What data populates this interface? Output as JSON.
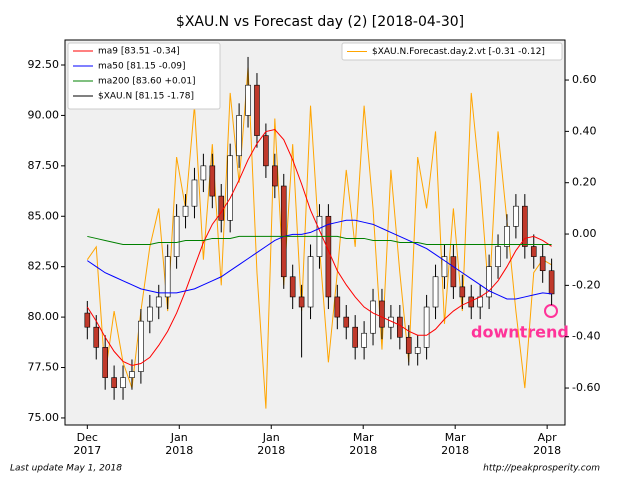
{
  "chart_data": {
    "type": "candlestick",
    "title": "$XAU.N vs Forecast day (2)  [2018-04-30]",
    "footer_left": "Last update May  1, 2018",
    "footer_right": "http://peakprosperity.com",
    "annotation": "downtrend",
    "up_color": "#ffffff",
    "down_color": "#c0392b",
    "candle_edge": "#000000",
    "xlim": [
      -2.5,
      53.5
    ],
    "xticks": [
      {
        "value": 0,
        "label": "Dec"
      },
      {
        "value": 10.3,
        "label": "Jan"
      },
      {
        "value": 20.6,
        "label": "Jan"
      },
      {
        "value": 30.9,
        "label": "Mar"
      },
      {
        "value": 41.2,
        "label": "Mar"
      },
      {
        "value": 51.5,
        "label": "Apr"
      }
    ],
    "xtick_sublabels": [
      "2017",
      "2018",
      "2018",
      "2018",
      "2018",
      "2018"
    ],
    "ylim": [
      74.65,
      93.74
    ],
    "yticks": [
      {
        "value": 75,
        "label": "75.00"
      },
      {
        "value": 77.5,
        "label": "77.50"
      },
      {
        "value": 80,
        "label": "80.00"
      },
      {
        "value": 82.5,
        "label": "82.50"
      },
      {
        "value": 85,
        "label": "85.00"
      },
      {
        "value": 87.5,
        "label": "87.50"
      },
      {
        "value": 90,
        "label": "90.00"
      },
      {
        "value": 92.5,
        "label": "92.50"
      }
    ],
    "y2lim": [
      -0.744,
      0.756
    ],
    "y2ticks": [
      {
        "value": -0.6,
        "label": "-0.60"
      },
      {
        "value": -0.4,
        "label": "-0.40"
      },
      {
        "value": -0.2,
        "label": "-0.20"
      },
      {
        "value": 0,
        "label": "0.00"
      },
      {
        "value": 0.2,
        "label": "0.20"
      },
      {
        "value": 0.4,
        "label": "0.40"
      },
      {
        "value": 0.6,
        "label": "0.60"
      }
    ],
    "candles": [
      [
        80.2,
        80.8,
        78.9,
        79.5
      ],
      [
        79.5,
        80.1,
        77.9,
        78.5
      ],
      [
        78.5,
        79.1,
        76.4,
        77
      ],
      [
        77,
        77.6,
        75.9,
        76.5
      ],
      [
        76.5,
        77.6,
        75.9,
        77
      ],
      [
        77,
        77.9,
        76.4,
        77.3
      ],
      [
        77.3,
        80.4,
        76.7,
        79.8
      ],
      [
        79.8,
        81.1,
        79.2,
        80.5
      ],
      [
        80.5,
        81.6,
        79.9,
        81
      ],
      [
        81,
        83.6,
        80.4,
        83
      ],
      [
        83,
        85.6,
        82.4,
        85
      ],
      [
        85,
        86.1,
        84.4,
        85.5
      ],
      [
        85.5,
        87.4,
        84.9,
        86.8
      ],
      [
        86.8,
        88.1,
        86.2,
        87.5
      ],
      [
        87.5,
        88.1,
        85.4,
        86
      ],
      [
        86,
        86.6,
        84.2,
        84.8
      ],
      [
        84.8,
        88.6,
        84.2,
        88
      ],
      [
        88,
        90.6,
        87.4,
        90
      ],
      [
        90,
        92.9,
        89.4,
        91.5
      ],
      [
        91.5,
        92.1,
        88.4,
        89
      ],
      [
        89,
        89.6,
        86.9,
        87.5
      ],
      [
        87.5,
        88.1,
        85.9,
        86.5
      ],
      [
        86.5,
        87.1,
        81.4,
        82
      ],
      [
        82,
        82.6,
        80.4,
        81
      ],
      [
        81,
        81.6,
        78,
        80.5
      ],
      [
        80.5,
        83.6,
        79.9,
        83
      ],
      [
        83,
        85.6,
        82.4,
        85
      ],
      [
        85,
        85.6,
        80.4,
        81
      ],
      [
        81,
        81.6,
        79.4,
        80
      ],
      [
        80,
        80.6,
        78.9,
        79.5
      ],
      [
        79.5,
        80.1,
        77.9,
        78.5
      ],
      [
        78.5,
        79.8,
        77.9,
        79.2
      ],
      [
        79.2,
        81.4,
        78.6,
        80.8
      ],
      [
        80.8,
        81.4,
        78.9,
        79.5
      ],
      [
        79.5,
        80.6,
        78.9,
        80
      ],
      [
        80,
        80.6,
        78.4,
        79
      ],
      [
        79,
        79.6,
        77.6,
        78.2
      ],
      [
        78.2,
        79.1,
        77.6,
        78.5
      ],
      [
        78.5,
        81.1,
        77.9,
        80.5
      ],
      [
        80.5,
        82.6,
        79.9,
        82
      ],
      [
        82,
        83.6,
        81.4,
        83
      ],
      [
        83,
        83.6,
        80.9,
        81.5
      ],
      [
        81.5,
        82.1,
        80.4,
        81
      ],
      [
        81,
        81.6,
        79.9,
        80.5
      ],
      [
        80.5,
        81.6,
        79.9,
        81
      ],
      [
        81,
        83.1,
        80.4,
        82.5
      ],
      [
        82.5,
        84.1,
        81.9,
        83.5
      ],
      [
        83.5,
        85.1,
        82.9,
        84.5
      ],
      [
        84.5,
        86.1,
        83.9,
        85.5
      ],
      [
        85.5,
        86.1,
        82.9,
        83.5
      ],
      [
        83.5,
        84.1,
        82.4,
        83
      ],
      [
        83,
        83.6,
        81.7,
        82.3
      ],
      [
        82.3,
        82.9,
        80.6,
        81.15
      ]
    ],
    "series": [
      {
        "name": "ma9 [83.51 -0.34]",
        "color": "#ff0000",
        "values": [
          80.5,
          79.8,
          79,
          78.3,
          77.8,
          77.6,
          77.7,
          78,
          78.6,
          79.3,
          80.2,
          81.3,
          82.5,
          83.7,
          84.6,
          85.2,
          85.9,
          86.8,
          87.8,
          88.6,
          89.2,
          89.3,
          88.8,
          87.8,
          86.6,
          85.3,
          84.3,
          83.3,
          82.3,
          81.6,
          81,
          80.5,
          80.2,
          80,
          79.8,
          79.6,
          79.3,
          79.1,
          79.1,
          79.4,
          79.9,
          80.3,
          80.6,
          80.8,
          81,
          81.3,
          81.8,
          82.5,
          83.3,
          83.9,
          84,
          83.8,
          83.51
        ]
      },
      {
        "name": "ma50 [81.15 -0.09]",
        "color": "#0000ff",
        "values": [
          82.8,
          82.5,
          82.2,
          82,
          81.8,
          81.6,
          81.4,
          81.3,
          81.2,
          81.2,
          81.2,
          81.3,
          81.4,
          81.6,
          81.8,
          82,
          82.3,
          82.6,
          82.9,
          83.2,
          83.5,
          83.8,
          84,
          84.1,
          84.1,
          84.2,
          84.4,
          84.6,
          84.7,
          84.8,
          84.8,
          84.7,
          84.6,
          84.4,
          84.2,
          84,
          83.8,
          83.6,
          83.4,
          83.1,
          82.8,
          82.5,
          82.2,
          81.9,
          81.6,
          81.3,
          81.1,
          80.9,
          80.9,
          81,
          81.1,
          81.2,
          81.15
        ]
      },
      {
        "name": "ma200 [83.60 +0.01]",
        "color": "#008000",
        "values": [
          84,
          83.9,
          83.8,
          83.7,
          83.6,
          83.6,
          83.6,
          83.6,
          83.7,
          83.7,
          83.7,
          83.8,
          83.8,
          83.8,
          83.9,
          83.9,
          83.9,
          84,
          84,
          84,
          84,
          84,
          84,
          84,
          84,
          84,
          84,
          84,
          84,
          83.9,
          83.9,
          83.9,
          83.8,
          83.8,
          83.8,
          83.7,
          83.7,
          83.7,
          83.6,
          83.6,
          83.6,
          83.6,
          83.6,
          83.6,
          83.6,
          83.6,
          83.6,
          83.6,
          83.6,
          83.6,
          83.6,
          83.6,
          83.6
        ]
      },
      {
        "name": "$XAU.N.Forecast.day.2.vt [-0.31 -0.12]",
        "color": "#ffa500",
        "axis": "y2",
        "values": [
          -0.1,
          -0.05,
          -0.55,
          -0.3,
          -0.5,
          -0.6,
          -0.3,
          -0.05,
          0.1,
          -0.3,
          0.3,
          0.1,
          0.5,
          -0.1,
          0.35,
          -0.2,
          0.55,
          0.2,
          0.65,
          -0.15,
          -0.68,
          0.45,
          -0.2,
          0.35,
          -0.3,
          0.5,
          -0.05,
          -0.5,
          -0.15,
          0.25,
          -0.05,
          0.5,
          0.1,
          -0.45,
          0.25,
          -0.15,
          -0.5,
          0.3,
          0.1,
          0.4,
          -0.35,
          0.1,
          -0.3,
          0.55,
          0.2,
          -0.25,
          0.4,
          0.05,
          -0.3,
          -0.6,
          -0.15,
          -0.1,
          -0.12
        ]
      }
    ],
    "candle_legend": "$XAU.N [81.15 -1.78]"
  }
}
